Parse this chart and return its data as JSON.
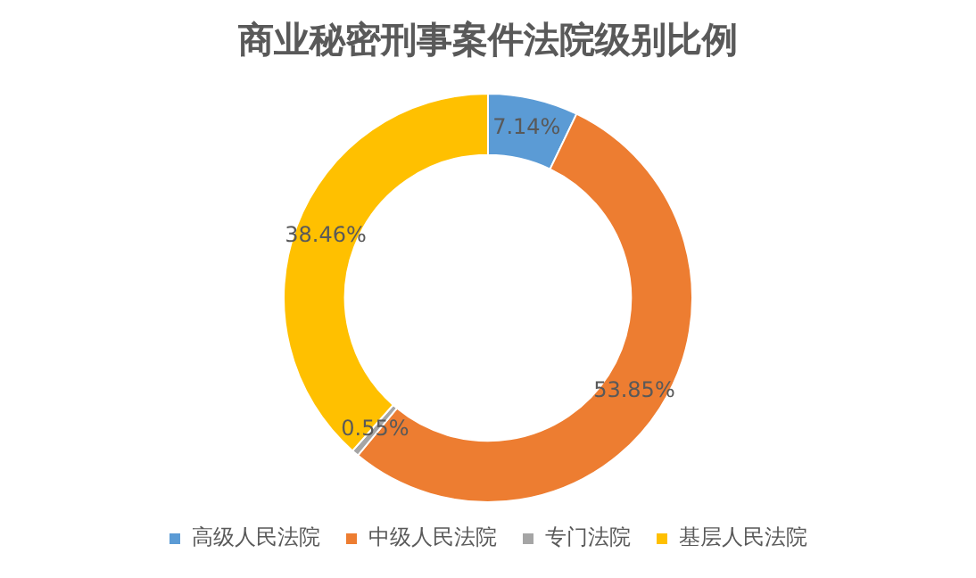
{
  "chart_data": {
    "type": "donut",
    "title": "商业秘密刑事案件法院级别比例",
    "categories": [
      "高级人民法院",
      "中级人民法院",
      "专门法院",
      "基层人民法院"
    ],
    "values": [
      7.14,
      53.85,
      0.55,
      38.46
    ],
    "colors": [
      "#5b9bd5",
      "#ed7d31",
      "#a5a5a5",
      "#ffc000"
    ],
    "value_labels": [
      "7.14%",
      "53.85%",
      "0.55%",
      "38.46%"
    ],
    "legend": "bottom"
  }
}
